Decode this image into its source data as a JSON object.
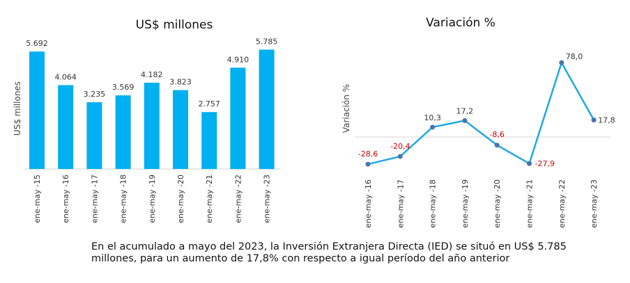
{
  "chart_data": [
    {
      "type": "bar",
      "title": "US$ millones",
      "ylabel": "US$ millones",
      "xlabel": "",
      "categories": [
        "ene-may -15",
        "ene-may -16",
        "ene-may -17",
        "ene-may -18",
        "ene-may -19",
        "ene-may -20",
        "ene-may -21",
        "ene-may -22",
        "ene-may -23"
      ],
      "values": [
        5692,
        4064,
        3235,
        3569,
        4182,
        3823,
        2757,
        4910,
        5785
      ],
      "value_labels": [
        "5.692",
        "4.064",
        "3.235",
        "3.569",
        "4.182",
        "3.823",
        "2.757",
        "4.910",
        "5.785"
      ],
      "ylim": [
        0,
        6000
      ],
      "grid": false,
      "color": "#00b0f0"
    },
    {
      "type": "line",
      "title": "Variación %",
      "ylabel": "Variación %",
      "xlabel": "",
      "categories": [
        "ene-may -16",
        "ene-may -17",
        "ene-may -18",
        "ene-may -19",
        "ene-may -20",
        "ene-may -21",
        "ene-may -22",
        "ene-may -23"
      ],
      "values": [
        -28.6,
        -20.4,
        10.3,
        17.2,
        -8.6,
        -27.9,
        78.0,
        17.8
      ],
      "value_labels": [
        "-28,6",
        "-20,4",
        "10,3",
        "17,2",
        "-8,6",
        "-27,9",
        "78,0",
        "17,8"
      ],
      "ylim": [
        -35,
        85
      ],
      "grid": false,
      "line_color": "#1fa7e6",
      "marker_color": "#4a72b0",
      "negative_label_color": "#d00000"
    }
  ],
  "caption": "En el acumulado a mayo del 2023, la Inversión Extranjera Directa (IED) se situó en US$ 5.785 millones, para un aumento de 17,8% con respecto a igual período del año anterior"
}
